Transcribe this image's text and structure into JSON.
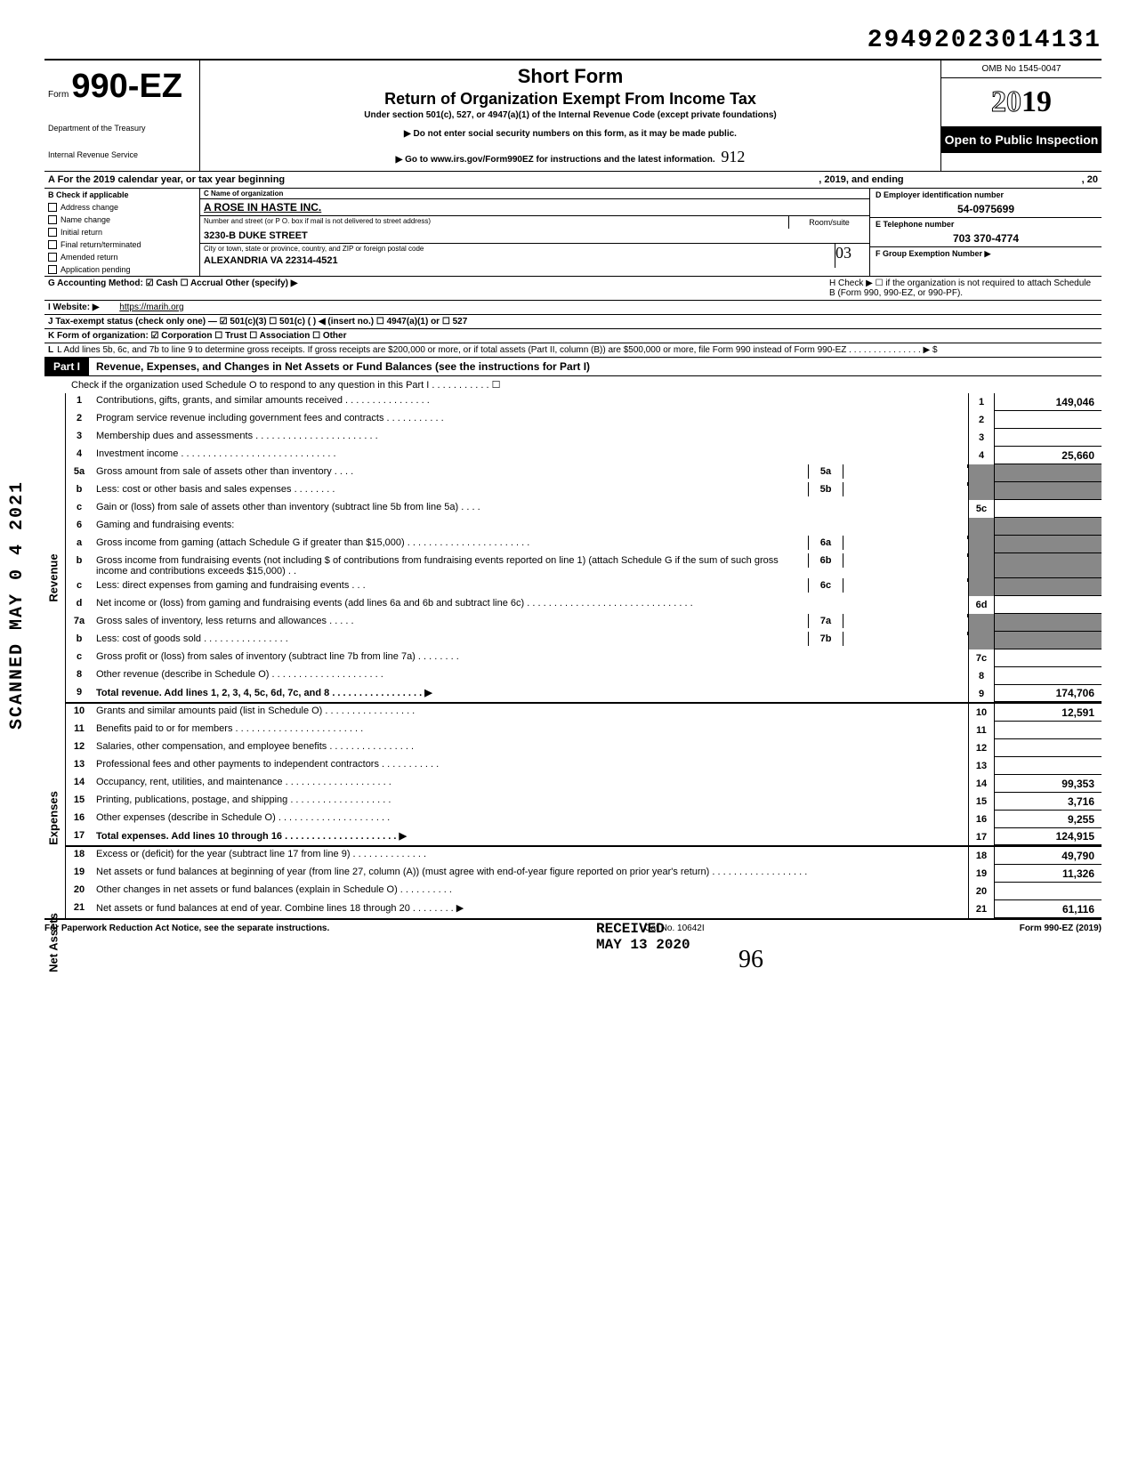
{
  "dln": "29492023014131",
  "form": {
    "prefix": "Form",
    "number": "990-EZ",
    "dept1": "Department of the Treasury",
    "dept2": "Internal Revenue Service"
  },
  "title": {
    "main": "Short Form",
    "sub": "Return of Organization Exempt From Income Tax",
    "under": "Under section 501(c), 527, or 4947(a)(1) of the Internal Revenue Code (except private foundations)",
    "note1": "▶ Do not enter social security numbers on this form, as it may be made public.",
    "note2": "▶ Go to www.irs.gov/Form990EZ for instructions and the latest information."
  },
  "yearbox": {
    "omb": "OMB No 1545-0047",
    "year_outline": "20",
    "year_solid": "19",
    "open": "Open to Public Inspection"
  },
  "hand912": "912",
  "lineA": {
    "label_pre": "A  For the 2019 calendar year, or tax year beginning",
    "label_mid": ", 2019, and ending",
    "label_end": ", 20"
  },
  "checkB": {
    "header": "B  Check if applicable",
    "items": [
      "Address change",
      "Name change",
      "Initial return",
      "Final return/terminated",
      "Amended return",
      "Application pending"
    ]
  },
  "colC": {
    "label": "C  Name of organization",
    "org": "A ROSE IN HASTE INC.",
    "street_label": "Number and street (or P O. box if mail is not delivered to street address)",
    "room_label": "Room/suite",
    "street": "3230-B DUKE STREET",
    "city_label": "City or town, state or province, country, and ZIP or foreign postal code",
    "city": "ALEXANDRIA VA 22314-4521",
    "hand03": "03"
  },
  "colDE": {
    "d_label": "D Employer identification number",
    "d_val": "54-0975699",
    "e_label": "E Telephone number",
    "e_val": "703 370-4774",
    "f_label": "F Group Exemption Number ▶"
  },
  "lineG": "G  Accounting Method:   ☑ Cash     ☐ Accrual     Other (specify) ▶",
  "lineH": "H  Check ▶ ☐ if the organization is not required to attach Schedule B (Form 990, 990-EZ, or 990-PF).",
  "lineI": {
    "label": "I  Website: ▶",
    "val": "https://marih.org"
  },
  "lineJ": "J  Tax-exempt status (check only one) — ☑ 501(c)(3)   ☐ 501(c) (        ) ◀ (insert no.)  ☐ 4947(a)(1) or   ☐ 527",
  "lineK": "K  Form of organization:   ☑ Corporation     ☐ Trust     ☐ Association     ☐ Other",
  "lineL": "L  Add lines 5b, 6c, and 7b to line 9 to determine gross receipts. If gross receipts are $200,000 or more, or if total assets (Part II, column (B)) are $500,000 or more, file Form 990 instead of Form 990-EZ . . . . . . . . . . . . . . . ▶   $",
  "part1": {
    "label": "Part I",
    "title": "Revenue, Expenses, and Changes in Net Assets or Fund Balances (see the instructions for Part I)",
    "note": "Check if the organization used Schedule O to respond to any question in this Part I . . . . . . . . . . . ☐"
  },
  "sections": {
    "revenue": "Revenue",
    "expenses": "Expenses",
    "netassets": "Net Assets"
  },
  "lines": {
    "l1": {
      "n": "1",
      "d": "Contributions, gifts, grants, and similar amounts received . . . . . . . . . . . . . . . .",
      "rn": "1",
      "v": "149,046"
    },
    "l2": {
      "n": "2",
      "d": "Program service revenue including government fees and contracts . . . . . . . . . . .",
      "rn": "2",
      "v": ""
    },
    "l3": {
      "n": "3",
      "d": "Membership dues and assessments . . . . . . . . . . . . . . . . . . . . . . .",
      "rn": "3",
      "v": ""
    },
    "l4": {
      "n": "4",
      "d": "Investment income . . . . . . . . . . . . . . . . . . . . . . . . . . . . .",
      "rn": "4",
      "v": "25,660"
    },
    "l5a": {
      "n": "5a",
      "d": "Gross amount from sale of assets other than inventory . . . .",
      "mid": "5a"
    },
    "l5b": {
      "n": "b",
      "d": "Less: cost or other basis and sales expenses . . . . . . . .",
      "mid": "5b"
    },
    "l5c": {
      "n": "c",
      "d": "Gain or (loss) from sale of assets other than inventory (subtract line 5b from line 5a) . . . .",
      "rn": "5c",
      "v": ""
    },
    "l6": {
      "n": "6",
      "d": "Gaming and fundraising events:"
    },
    "l6a": {
      "n": "a",
      "d": "Gross income from gaming (attach Schedule G if greater than $15,000) . . . . . . . . . . . . . . . . . . . . . . .",
      "mid": "6a"
    },
    "l6b": {
      "n": "b",
      "d": "Gross income from fundraising events (not including  $                          of contributions from fundraising events reported on line 1) (attach Schedule G if the sum of such gross income and contributions exceeds $15,000) . .",
      "mid": "6b"
    },
    "l6c": {
      "n": "c",
      "d": "Less: direct expenses from gaming and fundraising events . . .",
      "mid": "6c"
    },
    "l6d": {
      "n": "d",
      "d": "Net income or (loss) from gaming and fundraising events (add lines 6a and 6b and subtract line 6c) . . . . . . . . . . . . . . . . . . . . . . . . . . . . . . .",
      "rn": "6d",
      "v": ""
    },
    "l7a": {
      "n": "7a",
      "d": "Gross sales of inventory, less returns and allowances . . . . .",
      "mid": "7a"
    },
    "l7b": {
      "n": "b",
      "d": "Less: cost of goods sold . . . . . . . . . . . . . . . .",
      "mid": "7b"
    },
    "l7c": {
      "n": "c",
      "d": "Gross profit or (loss) from sales of inventory (subtract line 7b from line 7a) . . . . . . . .",
      "rn": "7c",
      "v": ""
    },
    "l8": {
      "n": "8",
      "d": "Other revenue (describe in Schedule O) . . . . . . . . . . . . . . . . . . . . .",
      "rn": "8",
      "v": ""
    },
    "l9": {
      "n": "9",
      "d": "Total revenue. Add lines 1, 2, 3, 4, 5c, 6d, 7c, and 8 . . . . . . . . . . . . . . . . . ▶",
      "rn": "9",
      "v": "174,706",
      "bold": true
    },
    "l10": {
      "n": "10",
      "d": "Grants and similar amounts paid (list in Schedule O) . . . . . . . . . . . . . . . . .",
      "rn": "10",
      "v": "12,591"
    },
    "l11": {
      "n": "11",
      "d": "Benefits paid to or for members . . . . . . . . . . . . . . . . . . . . . . . .",
      "rn": "11",
      "v": ""
    },
    "l12": {
      "n": "12",
      "d": "Salaries, other compensation, and employee benefits . . . . . . . . . . . . . . . .",
      "rn": "12",
      "v": ""
    },
    "l13": {
      "n": "13",
      "d": "Professional fees and other payments to independent contractors . . . . . . . . . . .",
      "rn": "13",
      "v": ""
    },
    "l14": {
      "n": "14",
      "d": "Occupancy, rent, utilities, and maintenance . . . . . . . . . . . . . . . . . . . .",
      "rn": "14",
      "v": "99,353"
    },
    "l15": {
      "n": "15",
      "d": "Printing, publications, postage, and shipping . . . . . . . . . . . . . . . . . . .",
      "rn": "15",
      "v": "3,716"
    },
    "l16": {
      "n": "16",
      "d": "Other expenses (describe in Schedule O) . . . . . . . . . . . . . . . . . . . . .",
      "rn": "16",
      "v": "9,255"
    },
    "l17": {
      "n": "17",
      "d": "Total expenses. Add lines 10 through 16 . . . . . . . . . . . . . . . . . . . . . ▶",
      "rn": "17",
      "v": "124,915",
      "bold": true
    },
    "l18": {
      "n": "18",
      "d": "Excess or (deficit) for the year (subtract line 17 from line 9) . . . . . . . . . . . . . .",
      "rn": "18",
      "v": "49,790"
    },
    "l19": {
      "n": "19",
      "d": "Net assets or fund balances at beginning of year (from line 27, column (A)) (must agree with end-of-year figure reported on prior year's return) . . . . . . . . . . . . . . . . . .",
      "rn": "19",
      "v": "11,326"
    },
    "l20": {
      "n": "20",
      "d": "Other changes in net assets or fund balances (explain in Schedule O) . . . . . . . . . .",
      "rn": "20",
      "v": ""
    },
    "l21": {
      "n": "21",
      "d": "Net assets or fund balances at end of year. Combine lines 18 through 20 . . . . . . . . ▶",
      "rn": "21",
      "v": "61,116"
    }
  },
  "footer": {
    "left": "For Paperwork Reduction Act Notice, see the separate instructions.",
    "mid": "Cat No. 10642I",
    "right": "Form 990-EZ (2019)"
  },
  "scanned": "SCANNED MAY 0 4 2021",
  "stamp": {
    "l1": "RECEIVED",
    "l2": "MAY 13 2020"
  },
  "sig": "96",
  "colors": {
    "bg": "#ffffff",
    "text": "#000000",
    "shade": "#888888",
    "header_bg": "#000000",
    "header_fg": "#ffffff"
  }
}
